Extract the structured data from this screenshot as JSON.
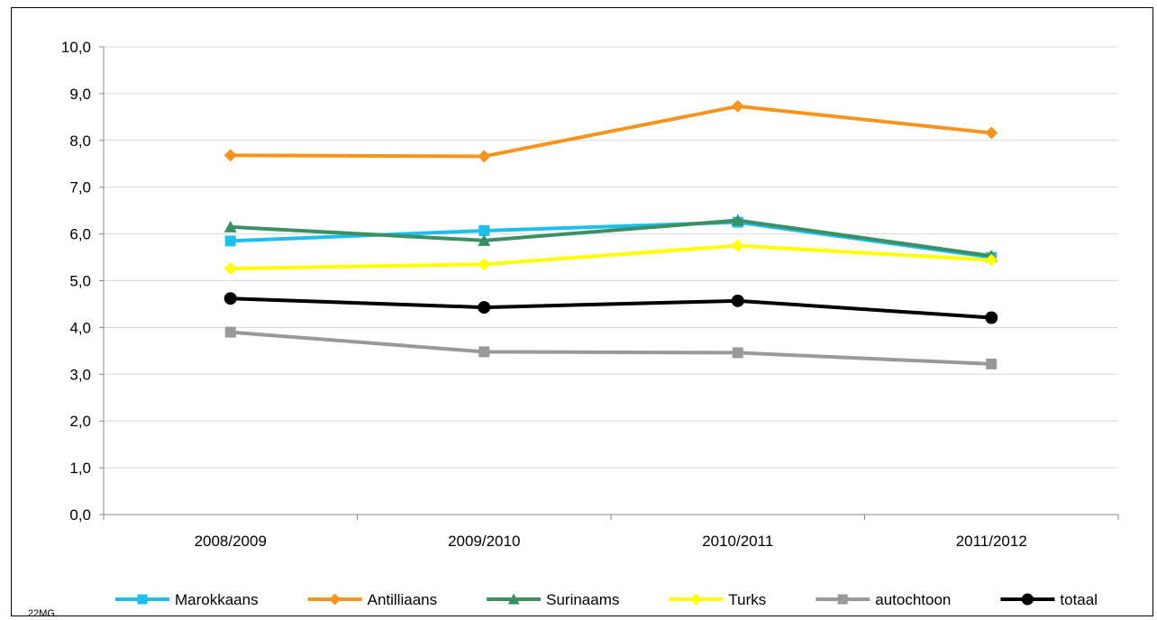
{
  "footnote": "22MG",
  "chart_data": {
    "type": "line",
    "title": "",
    "xlabel": "",
    "ylabel": "",
    "categories": [
      "2008/2009",
      "2009/2010",
      "2010/2011",
      "2011/2012"
    ],
    "ylim": [
      0,
      10
    ],
    "yticks": [
      "0,0",
      "1,0",
      "2,0",
      "3,0",
      "4,0",
      "5,0",
      "6,0",
      "7,0",
      "8,0",
      "9,0",
      "10,0"
    ],
    "grid": true,
    "legend_position": "bottom",
    "series": [
      {
        "name": "Marokkaans",
        "values": [
          5.85,
          6.07,
          6.25,
          5.5
        ],
        "color": "#1EBFEF",
        "marker": "square"
      },
      {
        "name": "Antilliaans",
        "values": [
          7.68,
          7.66,
          8.73,
          8.16
        ],
        "color": "#F7941D",
        "marker": "diamond"
      },
      {
        "name": "Surinaams",
        "values": [
          6.15,
          5.86,
          6.29,
          5.53
        ],
        "color": "#3A8F63",
        "marker": "triangle"
      },
      {
        "name": "Turks",
        "values": [
          5.26,
          5.35,
          5.75,
          5.44
        ],
        "color": "#FFFF00",
        "marker": "diamond"
      },
      {
        "name": "autochtoon",
        "values": [
          3.9,
          3.48,
          3.46,
          3.22
        ],
        "color": "#999999",
        "marker": "square"
      },
      {
        "name": "totaal",
        "values": [
          4.62,
          4.43,
          4.57,
          4.21
        ],
        "color": "#000000",
        "marker": "circle"
      }
    ]
  }
}
